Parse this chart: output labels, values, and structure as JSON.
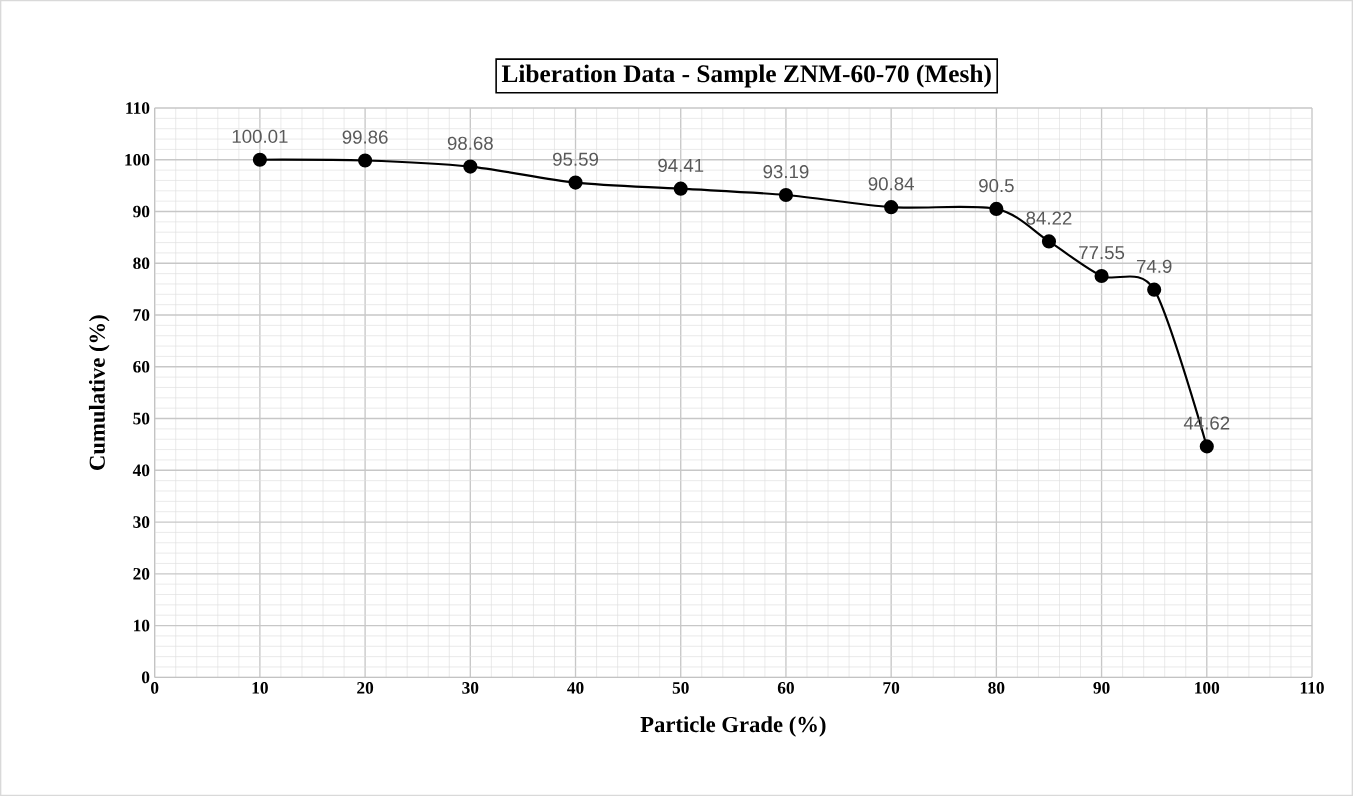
{
  "chart_data": {
    "type": "line",
    "title": "Liberation Data - Sample ZNM-60-70 (Mesh)",
    "xlabel": "Particle Grade (%)",
    "ylabel": "Cumulative (%)",
    "series": [
      {
        "color": "#000000",
        "x": [
          10,
          20,
          30,
          40,
          50,
          60,
          70,
          80,
          85,
          90,
          95,
          100
        ],
        "values": [
          100.01,
          99.86,
          98.68,
          95.59,
          94.41,
          93.19,
          90.84,
          90.5,
          84.22,
          77.55,
          74.9,
          44.62
        ]
      }
    ],
    "xlim": [
      0,
      110
    ],
    "ylim": [
      0,
      110
    ],
    "xticks": [
      0,
      10,
      20,
      30,
      40,
      50,
      60,
      70,
      80,
      90,
      100,
      110
    ],
    "yticks": [
      0,
      10,
      20,
      30,
      40,
      50,
      60,
      70,
      80,
      90,
      100,
      110
    ],
    "grid": true,
    "marker": "circle",
    "line_style": "solid",
    "data_labels": true
  }
}
